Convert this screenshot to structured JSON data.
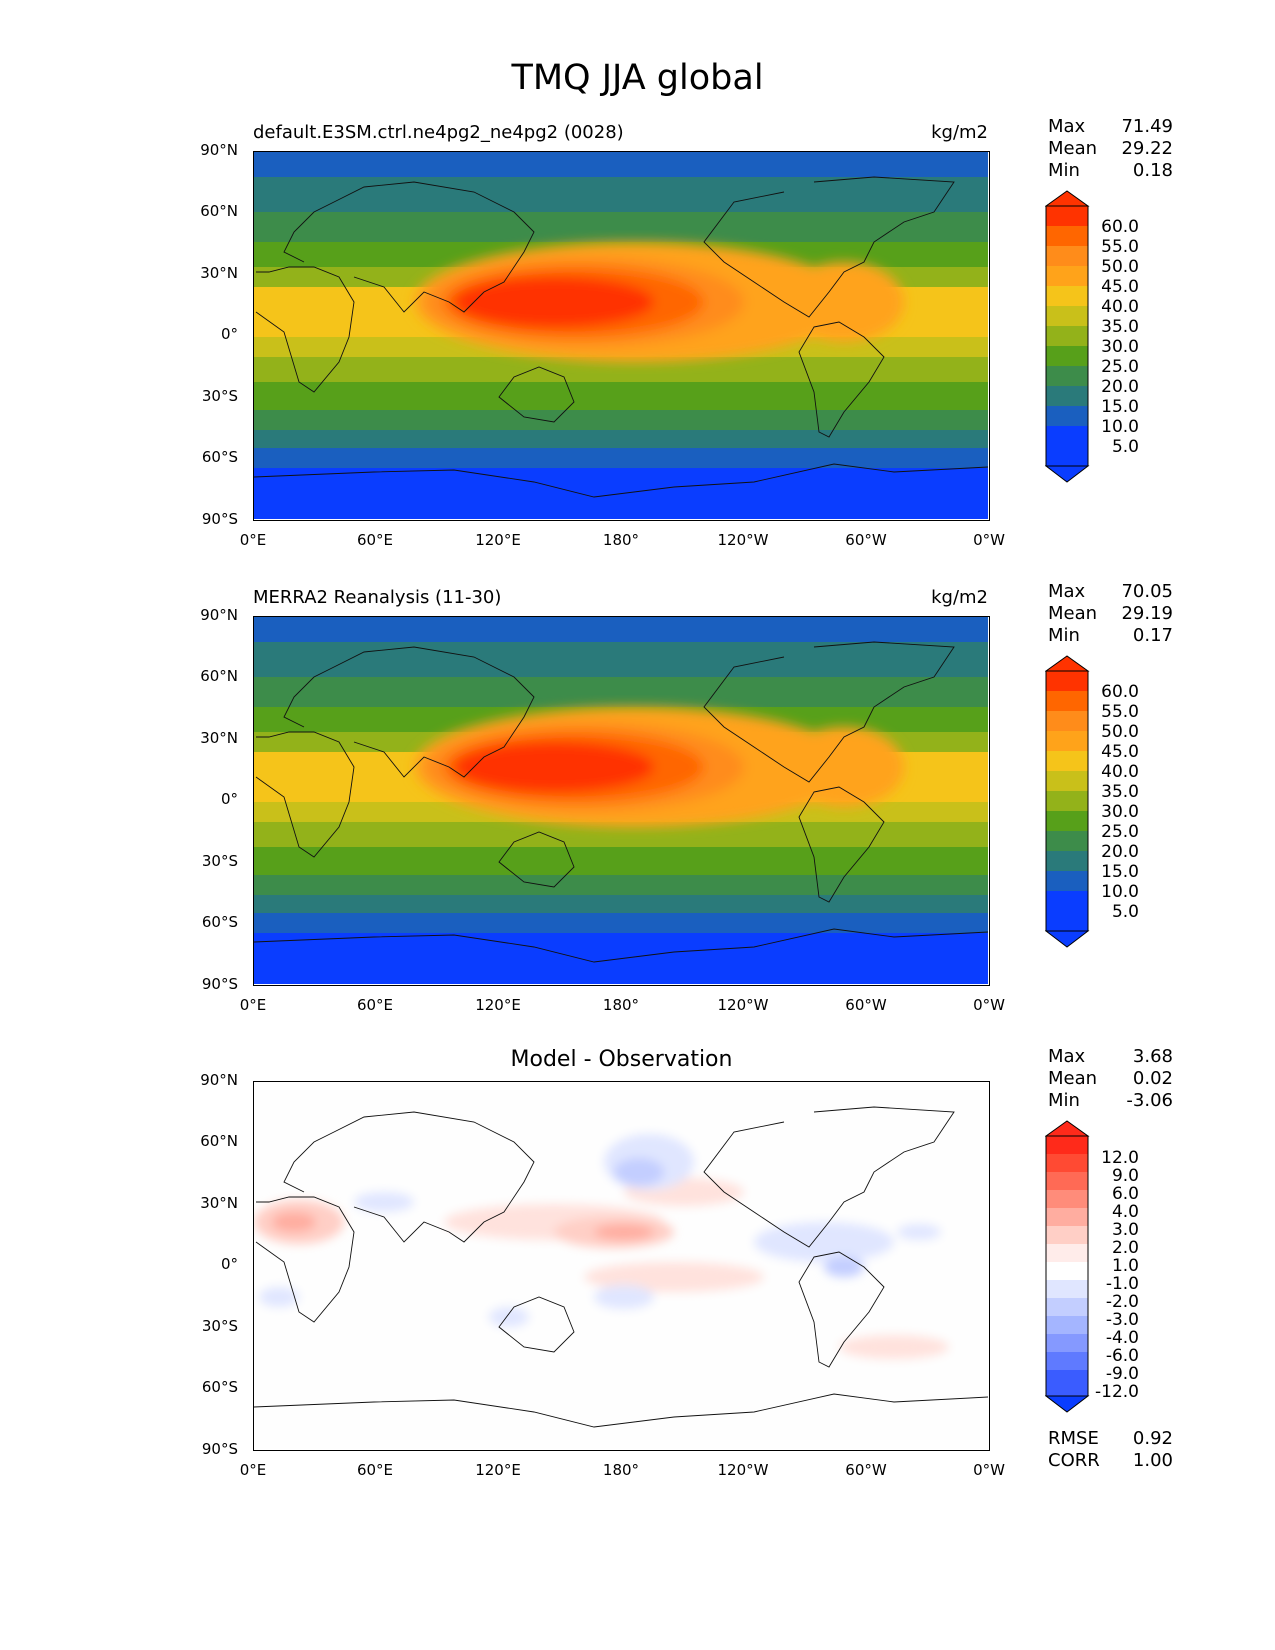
{
  "figure": {
    "title": "TMQ JJA global"
  },
  "axes": {
    "lat_ticks": [
      "90°N",
      "60°N",
      "30°N",
      "0°",
      "30°S",
      "60°S",
      "90°S"
    ],
    "lon_ticks": [
      "0°E",
      "60°E",
      "120°E",
      "180°",
      "120°W",
      "60°W",
      "0°W"
    ]
  },
  "panels": [
    {
      "id": "model",
      "title_left": "default.E3SM.ctrl.ne4pg2_ne4pg2 (0028)",
      "title_right": "kg/m2",
      "title_center": "",
      "stats": [
        {
          "label": "Max",
          "value": "71.49"
        },
        {
          "label": "Mean",
          "value": "29.22"
        },
        {
          "label": "Min",
          "value": "0.18"
        }
      ],
      "colorbar_labels": [
        "60.0",
        "55.0",
        "50.0",
        "45.0",
        "40.0",
        "35.0",
        "30.0",
        "25.0",
        "20.0",
        "15.0",
        "10.0",
        "5.0"
      ],
      "colorbar_colors": [
        "#ff3300",
        "#ff6600",
        "#ff8c1a",
        "#ffa31a",
        "#f5c41a",
        "#c9c01a",
        "#93b21a",
        "#57a01a",
        "#3d8c4a",
        "#2a7a7a",
        "#1a5fbf",
        "#0a3dff"
      ]
    },
    {
      "id": "obs",
      "title_left": "MERRA2 Reanalysis (11-30)",
      "title_right": "kg/m2",
      "title_center": "",
      "stats": [
        {
          "label": "Max",
          "value": "70.05"
        },
        {
          "label": "Mean",
          "value": "29.19"
        },
        {
          "label": "Min",
          "value": "0.17"
        }
      ],
      "colorbar_labels": [
        "60.0",
        "55.0",
        "50.0",
        "45.0",
        "40.0",
        "35.0",
        "30.0",
        "25.0",
        "20.0",
        "15.0",
        "10.0",
        "5.0"
      ],
      "colorbar_colors": [
        "#ff3300",
        "#ff6600",
        "#ff8c1a",
        "#ffa31a",
        "#f5c41a",
        "#c9c01a",
        "#93b21a",
        "#57a01a",
        "#3d8c4a",
        "#2a7a7a",
        "#1a5fbf",
        "#0a3dff"
      ]
    },
    {
      "id": "diff",
      "title_left": "",
      "title_right": "",
      "title_center": "Model - Observation",
      "stats": [
        {
          "label": "Max",
          "value": "3.68"
        },
        {
          "label": "Mean",
          "value": "0.02"
        },
        {
          "label": "Min",
          "value": "-3.06"
        }
      ],
      "colorbar_labels": [
        "12.0",
        "9.0",
        "6.0",
        "4.0",
        "3.0",
        "2.0",
        "1.0",
        "-1.0",
        "-2.0",
        "-3.0",
        "-4.0",
        "-6.0",
        "-9.0",
        "-12.0"
      ],
      "colorbar_colors": [
        "#ff2a1a",
        "#ff4a33",
        "#ff6a55",
        "#ff8c7a",
        "#ffada0",
        "#ffcfc6",
        "#ffecea",
        "#ffffff",
        "#e0e6ff",
        "#c3ceff",
        "#a4b5ff",
        "#8599ff",
        "#5f7aff",
        "#3a5cff",
        "#0a3dff"
      ],
      "extra_stats": [
        {
          "label": "RMSE",
          "value": "0.92"
        },
        {
          "label": "CORR",
          "value": "1.00"
        }
      ]
    }
  ]
}
